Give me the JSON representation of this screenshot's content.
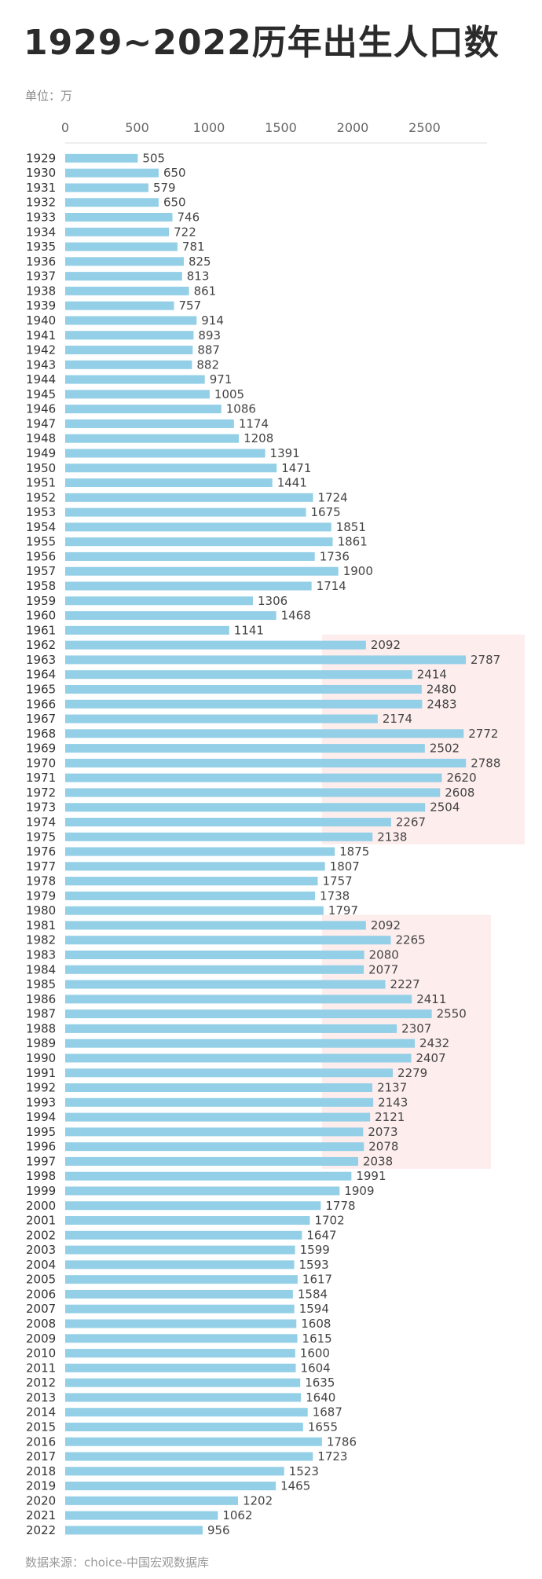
{
  "title": "1929~2022历年出生人口数",
  "unit_label": "单位：万",
  "source_label": "数据来源：choice-中国宏观数据库",
  "colors": {
    "bar": "#93cfe6",
    "highlight": "#fde8e8",
    "axis": "#dddddd"
  },
  "chart_data": {
    "type": "bar",
    "orientation": "horizontal",
    "title": "1929~2022历年出生人口数",
    "xlabel": "",
    "ylabel": "",
    "xlim": [
      0,
      2900
    ],
    "xticks": [
      0,
      500,
      1000,
      1500,
      2000,
      2500
    ],
    "highlight_ranges": [
      [
        "1962",
        "1975"
      ],
      [
        "1981",
        "1997"
      ]
    ],
    "categories": [
      "1929",
      "1930",
      "1931",
      "1932",
      "1933",
      "1934",
      "1935",
      "1936",
      "1937",
      "1938",
      "1939",
      "1940",
      "1941",
      "1942",
      "1943",
      "1944",
      "1945",
      "1946",
      "1947",
      "1948",
      "1949",
      "1950",
      "1951",
      "1952",
      "1953",
      "1954",
      "1955",
      "1956",
      "1957",
      "1958",
      "1959",
      "1960",
      "1961",
      "1962",
      "1963",
      "1964",
      "1965",
      "1966",
      "1967",
      "1968",
      "1969",
      "1970",
      "1971",
      "1972",
      "1973",
      "1974",
      "1975",
      "1976",
      "1977",
      "1978",
      "1979",
      "1980",
      "1981",
      "1982",
      "1983",
      "1984",
      "1985",
      "1986",
      "1987",
      "1988",
      "1989",
      "1990",
      "1991",
      "1992",
      "1993",
      "1994",
      "1995",
      "1996",
      "1997",
      "1998",
      "1999",
      "2000",
      "2001",
      "2002",
      "2003",
      "2004",
      "2005",
      "2006",
      "2007",
      "2008",
      "2009",
      "2010",
      "2011",
      "2012",
      "2013",
      "2014",
      "2015",
      "2016",
      "2017",
      "2018",
      "2019",
      "2020",
      "2021",
      "2022"
    ],
    "values": [
      505,
      650,
      579,
      650,
      746,
      722,
      781,
      825,
      813,
      861,
      757,
      914,
      893,
      887,
      882,
      971,
      1005,
      1086,
      1174,
      1208,
      1391,
      1471,
      1441,
      1724,
      1675,
      1851,
      1861,
      1736,
      1900,
      1714,
      1306,
      1468,
      1141,
      2092,
      2787,
      2414,
      2480,
      2483,
      2174,
      2772,
      2502,
      2788,
      2620,
      2608,
      2504,
      2267,
      2138,
      1875,
      1807,
      1757,
      1738,
      1797,
      2092,
      2265,
      2080,
      2077,
      2227,
      2411,
      2550,
      2307,
      2432,
      2407,
      2279,
      2137,
      2143,
      2121,
      2073,
      2078,
      2038,
      1991,
      1909,
      1778,
      1702,
      1647,
      1599,
      1593,
      1617,
      1584,
      1594,
      1608,
      1615,
      1600,
      1604,
      1635,
      1640,
      1687,
      1655,
      1786,
      1723,
      1523,
      1465,
      1202,
      1062,
      956
    ]
  }
}
